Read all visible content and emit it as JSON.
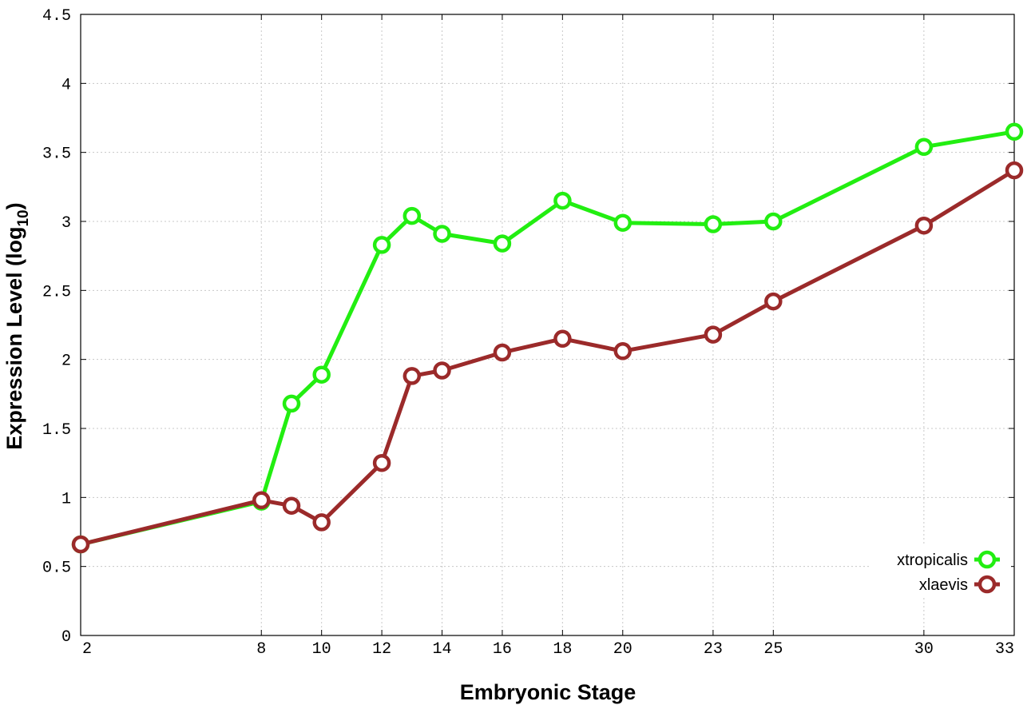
{
  "chart_data": {
    "type": "line",
    "xlabel": "Embryonic Stage",
    "ylabel_main": "Expression Level (log",
    "ylabel_sub": "10",
    "ylabel_close": ")",
    "xlim": [
      2,
      33
    ],
    "ylim": [
      0,
      4.5
    ],
    "x_ticks": [
      2,
      8,
      10,
      12,
      14,
      16,
      18,
      20,
      23,
      25,
      30,
      33
    ],
    "x_tick_labels": [
      "2",
      "8",
      "10",
      "12",
      "14",
      "16",
      "18",
      "20",
      "23",
      "25",
      "30",
      "33"
    ],
    "y_ticks": [
      0,
      0.5,
      1,
      1.5,
      2,
      2.5,
      3,
      3.5,
      4,
      4.5
    ],
    "y_tick_labels": [
      "0",
      "0.5",
      "1",
      "1.5",
      "2",
      "2.5",
      "3",
      "3.5",
      "4",
      "4.5"
    ],
    "grid": true,
    "legend_position": "bottom-right",
    "series": [
      {
        "name": "xtropicalis",
        "color": "#22ee11",
        "x": [
          2,
          8,
          9,
          10,
          12,
          13,
          14,
          16,
          18,
          20,
          23,
          25,
          30,
          33
        ],
        "y": [
          0.66,
          0.97,
          1.68,
          1.89,
          2.83,
          3.04,
          2.91,
          2.84,
          3.15,
          2.99,
          2.98,
          3.0,
          3.54,
          3.65
        ]
      },
      {
        "name": "xlaevis",
        "color": "#9b2a2a",
        "x": [
          2,
          8,
          9,
          10,
          12,
          13,
          14,
          16,
          18,
          20,
          23,
          25,
          30,
          33
        ],
        "y": [
          0.66,
          0.98,
          0.94,
          0.82,
          1.25,
          1.88,
          1.92,
          2.05,
          2.15,
          2.06,
          2.18,
          2.42,
          2.97,
          3.37
        ]
      }
    ]
  }
}
